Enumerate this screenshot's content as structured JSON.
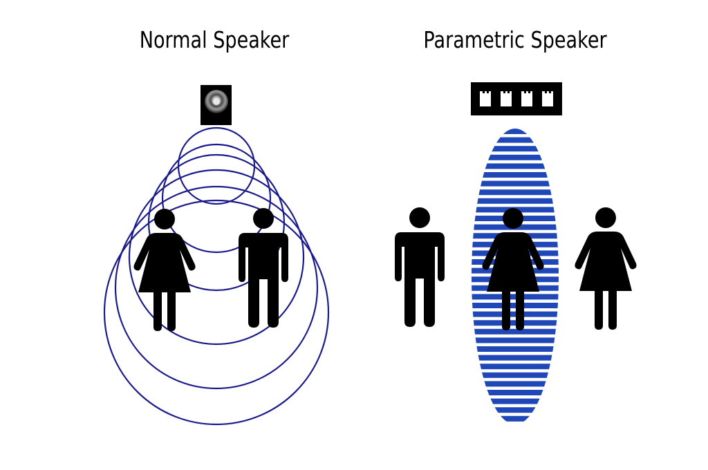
{
  "panels": {
    "normal": {
      "title": "Normal Speaker"
    },
    "parametric": {
      "title": "Parametric Speaker"
    }
  },
  "colors": {
    "wave_ring": "#1a1a8c",
    "beam_stripe": "#1f47b8",
    "figure": "#000000",
    "background": "#ffffff"
  },
  "icons": {
    "normal_speaker": "speaker-icon",
    "parametric_speaker": "ultrasonic-array-icon",
    "person_male": "man-icon",
    "person_female": "woman-icon"
  },
  "parametric_array_elements": 4,
  "normal_wave_rings": 6
}
